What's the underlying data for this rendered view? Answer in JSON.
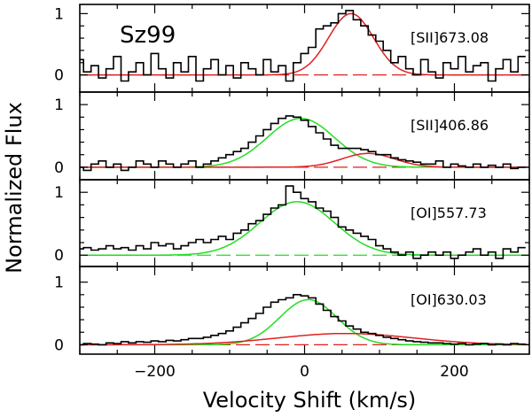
{
  "chart_data": {
    "type": "line",
    "xlabel": "Velocity Shift (km/s)",
    "ylabel": "Normalized Flux",
    "star": "Sz99",
    "xlim": [
      -300,
      300
    ],
    "xticks": [
      -200,
      0,
      200
    ],
    "xtick_labels": [
      "−200",
      "0",
      "200"
    ],
    "colors": {
      "data": "#000000",
      "fit_red": "#e02020",
      "fit_green": "#22dd22"
    },
    "panels": [
      {
        "label": "[SII]673.08",
        "ylim": [
          -0.28,
          1.15
        ],
        "yticks": [
          0,
          1
        ],
        "x": [
          -300,
          -290,
          -280,
          -270,
          -260,
          -250,
          -240,
          -230,
          -220,
          -210,
          -200,
          -190,
          -180,
          -170,
          -160,
          -150,
          -140,
          -130,
          -120,
          -110,
          -100,
          -90,
          -80,
          -70,
          -60,
          -50,
          -40,
          -30,
          -20,
          -10,
          0,
          10,
          20,
          30,
          40,
          50,
          60,
          70,
          80,
          90,
          100,
          110,
          120,
          130,
          140,
          150,
          160,
          170,
          180,
          190,
          200,
          210,
          220,
          230,
          240,
          250,
          260,
          270,
          280,
          290
        ],
        "y": [
          0.25,
          0.05,
          0.15,
          -0.05,
          0.1,
          0.3,
          -0.1,
          0.05,
          0.2,
          0.0,
          0.35,
          0.1,
          -0.05,
          0.2,
          0.05,
          0.3,
          -0.1,
          0.1,
          0.25,
          0.0,
          0.15,
          -0.05,
          0.2,
          0.1,
          0.0,
          0.25,
          0.05,
          0.15,
          -0.1,
          0.2,
          0.35,
          0.45,
          0.75,
          0.8,
          0.85,
          1.0,
          1.05,
          0.9,
          0.8,
          0.65,
          0.55,
          0.4,
          0.2,
          0.3,
          0.1,
          0.0,
          0.25,
          0.05,
          -0.05,
          0.2,
          0.1,
          0.3,
          0.05,
          0.15,
          0.2,
          -0.1,
          0.1,
          0.25,
          0.05,
          0.3
        ],
        "fits": [
          {
            "name": "red",
            "components": [
              {
                "amp": 1.0,
                "center": 62,
                "sigma": 30
              }
            ]
          }
        ]
      },
      {
        "label": "[SII]406.86",
        "ylim": [
          -0.2,
          1.2
        ],
        "yticks": [
          0,
          1
        ],
        "x": [
          -300,
          -290,
          -280,
          -270,
          -260,
          -250,
          -240,
          -230,
          -220,
          -210,
          -200,
          -190,
          -180,
          -170,
          -160,
          -150,
          -140,
          -130,
          -120,
          -110,
          -100,
          -90,
          -80,
          -70,
          -60,
          -50,
          -40,
          -30,
          -20,
          -10,
          0,
          10,
          20,
          30,
          40,
          50,
          60,
          70,
          80,
          90,
          100,
          110,
          120,
          130,
          140,
          150,
          160,
          170,
          180,
          190,
          200,
          210,
          220,
          230,
          240,
          250,
          260,
          270,
          280,
          290
        ],
        "y": [
          0.0,
          -0.05,
          0.05,
          0.1,
          0.0,
          0.05,
          -0.05,
          0.0,
          0.1,
          0.05,
          0.0,
          0.1,
          0.05,
          0.0,
          0.05,
          0.1,
          0.0,
          0.05,
          0.1,
          0.15,
          0.2,
          0.25,
          0.3,
          0.4,
          0.5,
          0.6,
          0.7,
          0.78,
          0.82,
          0.8,
          0.75,
          0.65,
          0.55,
          0.45,
          0.35,
          0.3,
          0.3,
          0.3,
          0.28,
          0.25,
          0.2,
          0.2,
          0.15,
          0.12,
          0.1,
          0.08,
          0.05,
          0.05,
          0.1,
          0.0,
          0.05,
          0.02,
          0.0,
          0.05,
          0.0,
          0.03,
          0.0,
          0.05,
          -0.02,
          0.0
        ],
        "fits": [
          {
            "name": "green",
            "components": [
              {
                "amp": 0.78,
                "center": -5,
                "sigma": 45
              }
            ]
          },
          {
            "name": "red",
            "components": [
              {
                "amp": 0.22,
                "center": 85,
                "sigma": 35
              }
            ]
          }
        ]
      },
      {
        "label": "[OI]557.73",
        "ylim": [
          -0.18,
          1.2
        ],
        "yticks": [
          0,
          1
        ],
        "x": [
          -300,
          -290,
          -280,
          -270,
          -260,
          -250,
          -240,
          -230,
          -220,
          -210,
          -200,
          -190,
          -180,
          -170,
          -160,
          -150,
          -140,
          -130,
          -120,
          -110,
          -100,
          -90,
          -80,
          -70,
          -60,
          -50,
          -40,
          -30,
          -20,
          -10,
          0,
          10,
          20,
          30,
          40,
          50,
          60,
          70,
          80,
          90,
          100,
          110,
          120,
          130,
          140,
          150,
          160,
          170,
          180,
          190,
          200,
          210,
          220,
          230,
          240,
          250,
          260,
          270,
          280,
          290
        ],
        "y": [
          0.1,
          0.12,
          0.08,
          0.1,
          0.15,
          0.1,
          0.12,
          0.08,
          0.15,
          0.1,
          0.2,
          0.15,
          0.18,
          0.1,
          0.15,
          0.2,
          0.25,
          0.2,
          0.25,
          0.3,
          0.25,
          0.35,
          0.4,
          0.5,
          0.55,
          0.65,
          0.75,
          0.8,
          1.1,
          1.0,
          0.9,
          0.85,
          0.75,
          0.7,
          0.6,
          0.45,
          0.4,
          0.35,
          0.3,
          0.25,
          0.15,
          0.1,
          0.05,
          0.0,
          0.05,
          -0.05,
          0.0,
          0.05,
          0.0,
          0.05,
          -0.05,
          0.0,
          0.05,
          0.1,
          0.0,
          0.05,
          -0.05,
          0.1,
          0.05,
          0.12
        ],
        "fits": [
          {
            "name": "green",
            "components": [
              {
                "amp": 0.85,
                "center": -10,
                "sigma": 50
              }
            ]
          }
        ]
      },
      {
        "label": "[OI]630.03",
        "ylim": [
          -0.15,
          1.25
        ],
        "yticks": [
          0,
          1
        ],
        "x": [
          -300,
          -290,
          -280,
          -270,
          -260,
          -250,
          -240,
          -230,
          -220,
          -210,
          -200,
          -190,
          -180,
          -170,
          -160,
          -150,
          -140,
          -130,
          -120,
          -110,
          -100,
          -90,
          -80,
          -70,
          -60,
          -50,
          -40,
          -30,
          -20,
          -10,
          0,
          10,
          20,
          30,
          40,
          50,
          60,
          70,
          80,
          90,
          100,
          110,
          120,
          130,
          140,
          150,
          160,
          170,
          180,
          190,
          200,
          210,
          220,
          230,
          240,
          250,
          260,
          270,
          280,
          290
        ],
        "y": [
          0.0,
          0.02,
          0.01,
          0.0,
          0.03,
          0.02,
          0.05,
          0.03,
          0.05,
          0.04,
          0.06,
          0.05,
          0.07,
          0.06,
          0.08,
          0.1,
          0.1,
          0.12,
          0.15,
          0.18,
          0.22,
          0.28,
          0.35,
          0.42,
          0.5,
          0.6,
          0.68,
          0.72,
          0.75,
          0.8,
          0.78,
          0.75,
          0.65,
          0.55,
          0.45,
          0.38,
          0.3,
          0.25,
          0.2,
          0.18,
          0.15,
          0.12,
          0.1,
          0.08,
          0.06,
          0.05,
          0.04,
          0.03,
          0.03,
          0.02,
          0.01,
          0.02,
          0.0,
          0.01,
          0.02,
          0.0,
          0.01,
          0.0,
          0.02,
          0.01
        ],
        "fits": [
          {
            "name": "green",
            "components": [
              {
                "amp": 0.72,
                "center": 5,
                "sigma": 38
              }
            ]
          },
          {
            "name": "red",
            "components": [
              {
                "amp": 0.18,
                "center": 55,
                "sigma": 90
              }
            ]
          }
        ]
      }
    ]
  }
}
